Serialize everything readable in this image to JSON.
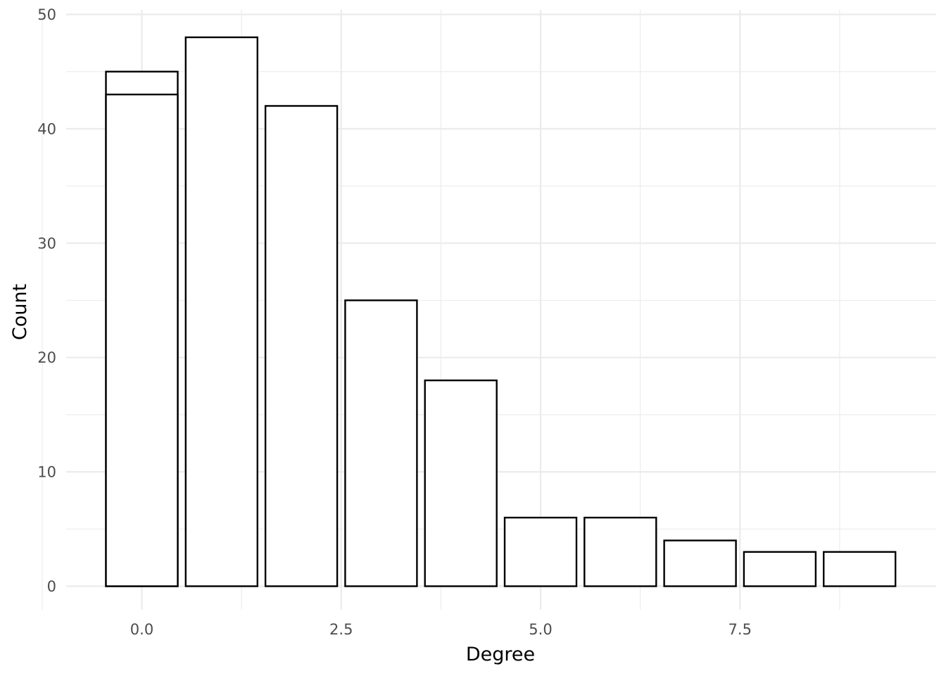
{
  "chart_data": {
    "type": "bar",
    "xlabel": "Degree",
    "ylabel": "Count",
    "xlim": [
      -1,
      10
    ],
    "ylim": [
      0,
      50
    ],
    "x_ticks": [
      0.0,
      2.5,
      5.0,
      7.5
    ],
    "x_tick_labels": [
      "0.0",
      "2.5",
      "5.0",
      "7.5"
    ],
    "y_ticks": [
      0,
      10,
      20,
      30,
      40,
      50
    ],
    "y_tick_labels": [
      "0",
      "10",
      "20",
      "30",
      "40",
      "50"
    ],
    "grid": true,
    "bar_width": 0.9,
    "fill_color": "#ffffff",
    "outline_color": "#000000",
    "bars": [
      {
        "x": 0,
        "value": 43
      },
      {
        "x": 0,
        "value": 45
      },
      {
        "x": 1,
        "value": 48
      },
      {
        "x": 2,
        "value": 42
      },
      {
        "x": 3,
        "value": 25
      },
      {
        "x": 4,
        "value": 18
      },
      {
        "x": 5,
        "value": 6
      },
      {
        "x": 6,
        "value": 6
      },
      {
        "x": 7,
        "value": 4
      },
      {
        "x": 8,
        "value": 3
      },
      {
        "x": 9,
        "value": 3
      }
    ]
  }
}
